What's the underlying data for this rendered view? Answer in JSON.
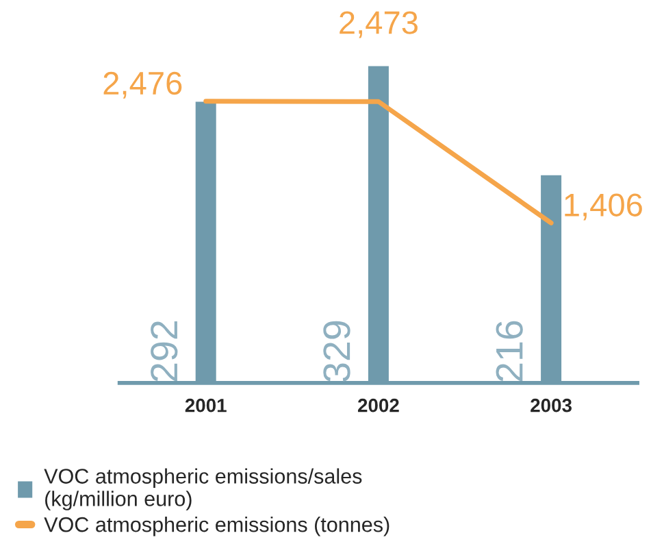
{
  "chart_data": {
    "type": "bar",
    "categories": [
      "2001",
      "2002",
      "2003"
    ],
    "series": [
      {
        "name": "VOC atmospheric emissions/sales (kg/million euro)",
        "color": "#6f9aac",
        "values": [
          292,
          329,
          216
        ]
      },
      {
        "name": "VOC atmospheric emissions (tonnes)",
        "color": "#f5a54a",
        "values": [
          2476,
          2473,
          1406
        ],
        "value_labels": [
          "2,476",
          "2,473",
          "1,406"
        ],
        "type": "line",
        "axis": "y2"
      }
    ],
    "data_labels": true,
    "legend": "bottom",
    "grid": false
  }
}
